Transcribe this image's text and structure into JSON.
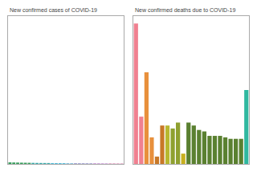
{
  "chart_data": [
    {
      "type": "bar",
      "title": "New confirmed cases of COVID-19",
      "categories": [
        null,
        null,
        null,
        null,
        null,
        null,
        null,
        null,
        null,
        null,
        null,
        null,
        null,
        null,
        null,
        null,
        null,
        null,
        null,
        null,
        null,
        null,
        null,
        null,
        null,
        null,
        null,
        null,
        null,
        null
      ],
      "values": [
        6.0,
        5.5,
        5.2,
        4.8,
        4.5,
        4.3,
        4.0,
        3.8,
        3.6,
        3.5,
        3.4,
        3.2,
        3.0,
        2.9,
        2.8,
        2.7,
        2.6,
        2.5,
        2.4,
        2.3,
        2.2,
        2.1,
        2.0,
        1.9,
        1.8,
        1.7,
        1.6,
        1.55,
        1.5,
        1.45
      ],
      "colors": [
        "#3a9e5e",
        "#3a9e5e",
        "#3a9e5e",
        "#3a9e5e",
        "#3a9e5e",
        "#3a9e5e",
        "#3aaaaa",
        "#3aaaaa",
        "#3aaaaa",
        "#3aaaaa",
        "#3aaaaa",
        "#4ab8d8",
        "#4ab8d8",
        "#4ab8d8",
        "#4ab8d8",
        "#7ab8d8",
        "#7ab8d8",
        "#9090c8",
        "#9090c8",
        "#9090c8",
        "#9090c8",
        "#9090c8",
        "#b878c8",
        "#b878c8",
        "#b878c8",
        "#b878c8",
        "#d070a0",
        "#d070a0",
        "#d070a0",
        "#d070a0"
      ],
      "ylim": [
        0,
        550
      ],
      "tick_labels": false,
      "grid": false
    },
    {
      "type": "bar",
      "title": "New confirmed deaths due to COVID-19",
      "categories": [
        null,
        null,
        null,
        null,
        null,
        null,
        null,
        null,
        null,
        null,
        null,
        null,
        null,
        null,
        null,
        null,
        null,
        null,
        null,
        null,
        null,
        null
      ],
      "values": [
        95,
        32,
        62,
        18,
        5,
        26,
        26,
        24,
        28,
        7,
        28,
        26,
        23,
        22,
        19,
        19,
        19,
        18,
        17,
        17,
        17,
        50
      ],
      "colors": [
        "#f08090",
        "#f08090",
        "#e8903c",
        "#e8903c",
        "#c87828",
        "#c87828",
        "#b8b830",
        "#8fa030",
        "#8fa030",
        "#c8b020",
        "#5a8030",
        "#5a8030",
        "#5a8030",
        "#5a8030",
        "#5a8030",
        "#5a8030",
        "#5a8030",
        "#5a8030",
        "#5a8030",
        "#5a8030",
        "#5a8030",
        "#30b8a0"
      ],
      "ylim": [
        0,
        100
      ],
      "tick_labels": false,
      "grid": false
    }
  ]
}
